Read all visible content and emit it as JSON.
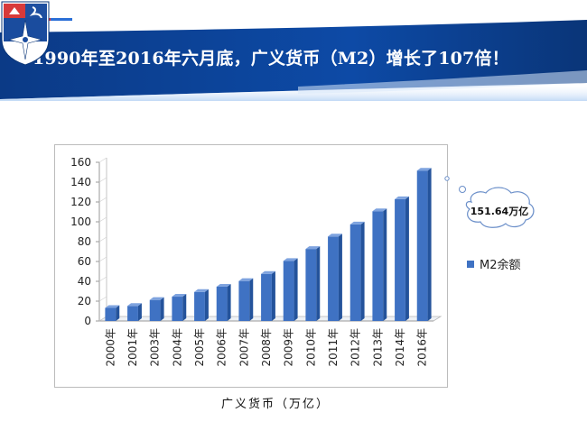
{
  "header": {
    "title": "1990年至2016年六月底，广义货币（M2）增长了107倍！"
  },
  "colors": {
    "header_blue": "#0a3f8f",
    "bar_blue": "#3f72c3",
    "bar_dark": "#24539b",
    "accent_red": "#e0343c"
  },
  "logo": {
    "icon": "compass-star-crest-icon"
  },
  "chart_data": {
    "type": "bar",
    "categories": [
      "2000年",
      "2001年",
      "2003年",
      "2004年",
      "2005年",
      "2006年",
      "2007年",
      "2008年",
      "2009年",
      "2010年",
      "2011年",
      "2012年",
      "2013年",
      "2014年",
      "2016年"
    ],
    "series": [
      {
        "name": "M2余额",
        "values": [
          13.2,
          15.2,
          21.2,
          24.5,
          29.3,
          34.6,
          40.3,
          47.5,
          60.6,
          72.6,
          85.2,
          97.4,
          110.7,
          122.8,
          151.64
        ]
      }
    ],
    "ylim": [
      0,
      160
    ],
    "yticks": [
      0,
      20,
      40,
      60,
      80,
      100,
      120,
      140,
      160
    ],
    "grid": false,
    "legend_position": "right",
    "callout": "151.64万亿",
    "caption": "广义货币（万亿）"
  }
}
